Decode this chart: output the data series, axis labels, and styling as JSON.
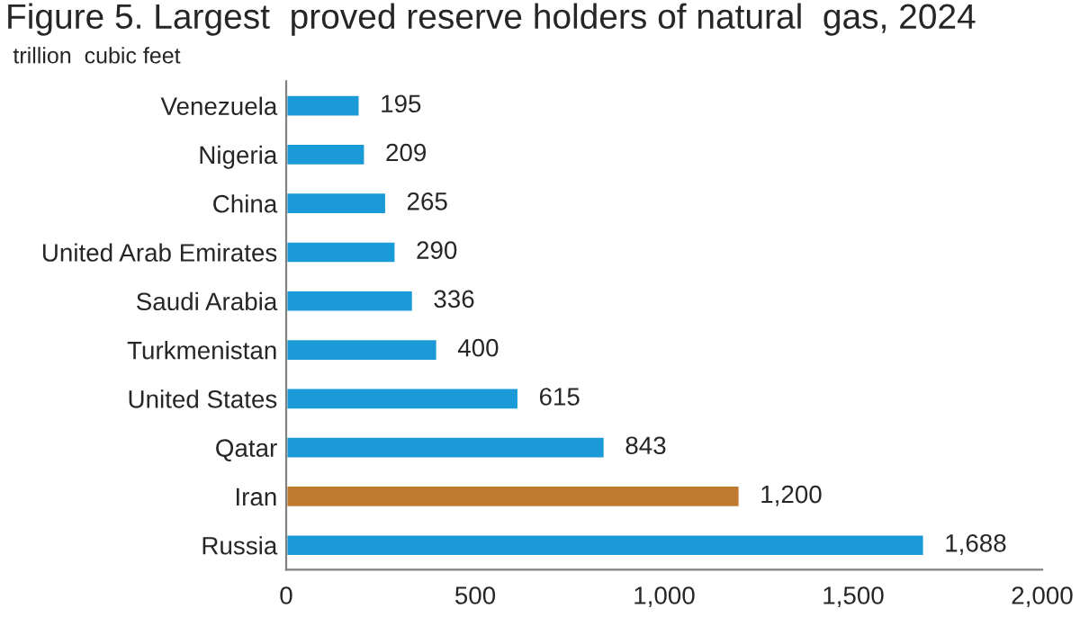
{
  "chart_data": {
    "type": "bar",
    "orientation": "horizontal",
    "title": "Figure 5. Largest  proved reserve holders of natural  gas, 2024",
    "subtitle": "trillion  cubic feet",
    "categories": [
      "Venezuela",
      "Nigeria",
      "China",
      "United Arab Emirates",
      "Saudi Arabia",
      "Turkmenistan",
      "United States",
      "Qatar",
      "Iran",
      "Russia"
    ],
    "values": [
      195,
      209,
      265,
      290,
      336,
      400,
      615,
      843,
      1200,
      1688
    ],
    "colors": [
      "#1a9ad6",
      "#1a9ad6",
      "#1a9ad6",
      "#1a9ad6",
      "#1a9ad6",
      "#1a9ad6",
      "#1a9ad6",
      "#1a9ad6",
      "#c07a30",
      "#1a9ad6"
    ],
    "value_labels": [
      "195",
      "209",
      "265",
      "290",
      "336",
      "400",
      "615",
      "843",
      "1,200",
      "1,688"
    ],
    "xlim": [
      0,
      2000
    ],
    "xticks": [
      0,
      500,
      {
        "value": 1000,
        "label": "1,000"
      },
      {
        "value": 1500,
        "label": "1,500"
      },
      {
        "value": 2000,
        "label": "2,000"
      }
    ],
    "grid": false,
    "legend": false
  }
}
